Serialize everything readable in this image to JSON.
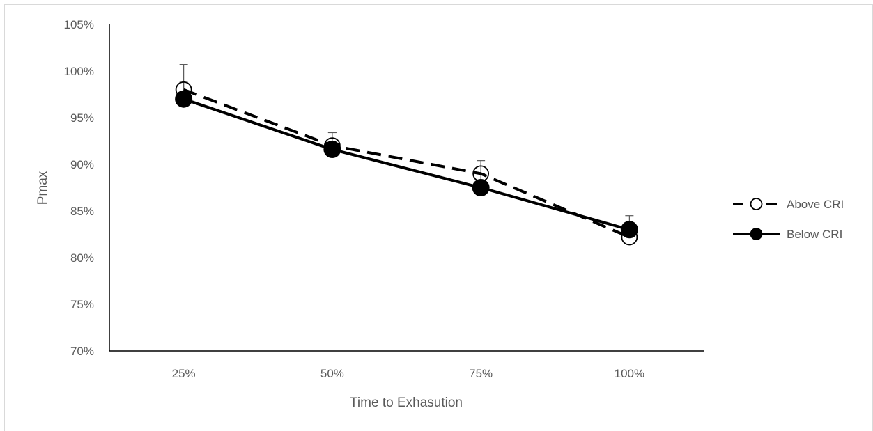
{
  "chart_data": {
    "type": "line",
    "title": "",
    "xlabel": "Time to Exhasution",
    "ylabel": "Pmax",
    "categories": [
      "25%",
      "50%",
      "75%",
      "100%"
    ],
    "ylim": [
      70,
      105
    ],
    "y_ticks": [
      "70%",
      "75%",
      "80%",
      "85%",
      "90%",
      "95%",
      "100%",
      "105%"
    ],
    "grid": false,
    "legend_position": "right",
    "series": [
      {
        "name": "Above CRI",
        "values": [
          98.0,
          92.0,
          89.0,
          82.2
        ],
        "error": [
          2.7,
          1.4,
          1.4,
          0.8
        ],
        "line_style": "dashed",
        "marker": "open-circle",
        "color": "#000000"
      },
      {
        "name": "Below CRI",
        "values": [
          97.0,
          91.6,
          87.5,
          83.0
        ],
        "error": [
          1.8,
          1.8,
          1.5,
          1.5
        ],
        "line_style": "solid",
        "marker": "filled-circle",
        "color": "#000000"
      }
    ]
  }
}
